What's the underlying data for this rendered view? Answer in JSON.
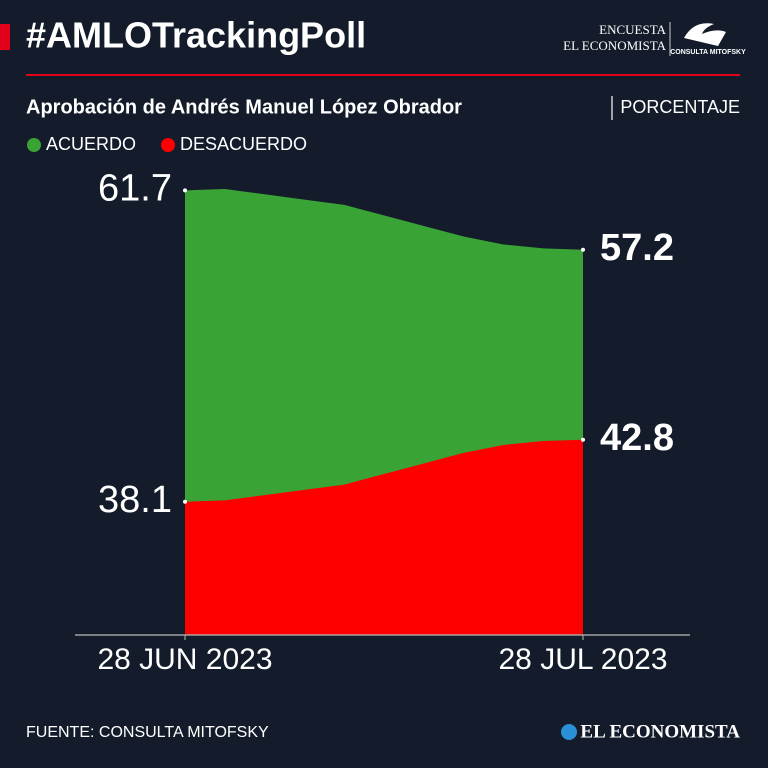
{
  "header": {
    "brand_top": "ENCUESTA",
    "brand_name": "EL ECONOMISTA",
    "partner": "CONSULTA MITOFSKY"
  },
  "chart_data": {
    "type": "area",
    "title": "#AMLOTrackingPoll",
    "subtitle": "Aprobación de Andrés Manuel López Obrador",
    "unit": "PORCENTAJE",
    "x": [
      "2023-06-28",
      "2023-07-01",
      "2023-07-04",
      "2023-07-07",
      "2023-07-10",
      "2023-07-13",
      "2023-07-16",
      "2023-07-19",
      "2023-07-22",
      "2023-07-25",
      "2023-07-28"
    ],
    "xlim": [
      "2023-06-28",
      "2023-07-28"
    ],
    "xticks": [
      {
        "value": "2023-06-28",
        "label": "28 JUN 2023"
      },
      {
        "value": "2023-07-28",
        "label": "28 JUL 2023"
      }
    ],
    "ylim": [
      28,
      64
    ],
    "series": [
      {
        "name": "ACUERDO",
        "color": "#3aa335",
        "values": [
          61.7,
          61.8,
          61.4,
          61.0,
          60.6,
          59.8,
          59.0,
          58.2,
          57.6,
          57.3,
          57.2
        ]
      },
      {
        "name": "DESACUERDO",
        "color": "#ff0000",
        "values": [
          38.1,
          38.2,
          38.6,
          39.0,
          39.4,
          40.2,
          41.0,
          41.8,
          42.4,
          42.7,
          42.8
        ]
      }
    ],
    "grid": false
  },
  "footer": {
    "source": "FUENTE: CONSULTA MITOFSKY",
    "logo": "EL ECONOMISTA"
  }
}
